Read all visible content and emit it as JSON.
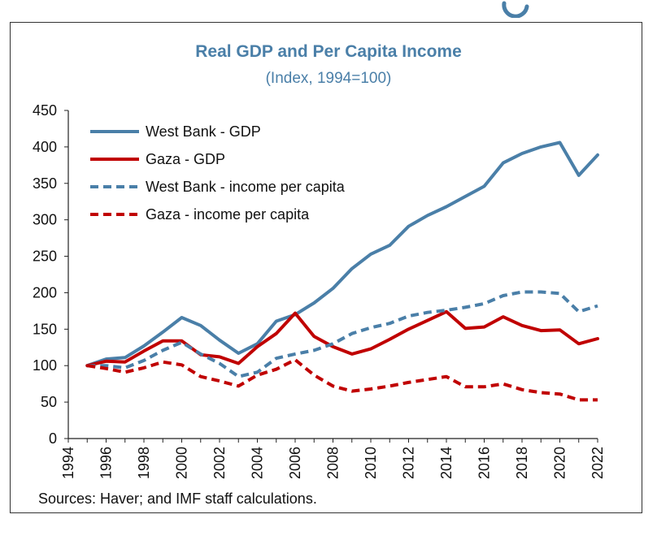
{
  "chart_data": {
    "type": "line",
    "title": "Real GDP and Per Capita Income",
    "subtitle": "(Index, 1994=100)",
    "source": "Sources: Haver; and IMF staff calculations.",
    "xlabel": "",
    "ylabel": "",
    "xlim": [
      1994,
      2022
    ],
    "ylim": [
      0,
      450
    ],
    "x_tick_labels": [
      "1994",
      "1996",
      "1998",
      "2000",
      "2002",
      "2004",
      "2006",
      "2008",
      "2010",
      "2012",
      "2014",
      "2016",
      "2018",
      "2020",
      "2022"
    ],
    "y_tick_labels": [
      "0",
      "50",
      "100",
      "150",
      "200",
      "250",
      "300",
      "350",
      "400",
      "450"
    ],
    "legend_position": "top-left",
    "x": [
      1995,
      1996,
      1997,
      1998,
      1999,
      2000,
      2001,
      2002,
      2003,
      2004,
      2005,
      2006,
      2007,
      2008,
      2009,
      2010,
      2011,
      2012,
      2013,
      2014,
      2015,
      2016,
      2017,
      2018,
      2019,
      2020,
      2021,
      2022
    ],
    "series": [
      {
        "name": "West Bank - GDP",
        "color": "#4a7fa8",
        "dash": "solid",
        "values": [
          100,
          109,
          111,
          127,
          146,
          166,
          155,
          135,
          117,
          130,
          161,
          170,
          186,
          206,
          233,
          253,
          265,
          291,
          306,
          318,
          332,
          346,
          378,
          391,
          400,
          406,
          361,
          389
        ]
      },
      {
        "name": "Gaza - GDP",
        "color": "#c00000",
        "dash": "solid",
        "values": [
          100,
          106,
          105,
          120,
          134,
          134,
          115,
          112,
          103,
          126,
          144,
          172,
          140,
          126,
          116,
          123,
          136,
          150,
          162,
          174,
          151,
          153,
          167,
          155,
          148,
          149,
          130,
          137
        ]
      },
      {
        "name": "West Bank - income per capita",
        "color": "#4a7fa8",
        "dash": "dashed",
        "values": [
          100,
          100,
          97,
          107,
          121,
          132,
          116,
          103,
          85,
          91,
          110,
          116,
          121,
          130,
          144,
          152,
          158,
          168,
          173,
          176,
          180,
          185,
          196,
          201,
          201,
          199,
          174,
          182
        ]
      },
      {
        "name": "Gaza - income per capita",
        "color": "#c00000",
        "dash": "dashed",
        "values": [
          100,
          96,
          91,
          97,
          105,
          101,
          85,
          79,
          72,
          87,
          95,
          108,
          87,
          72,
          65,
          68,
          72,
          77,
          81,
          85,
          71,
          71,
          75,
          67,
          63,
          61,
          53,
          53
        ]
      }
    ]
  }
}
